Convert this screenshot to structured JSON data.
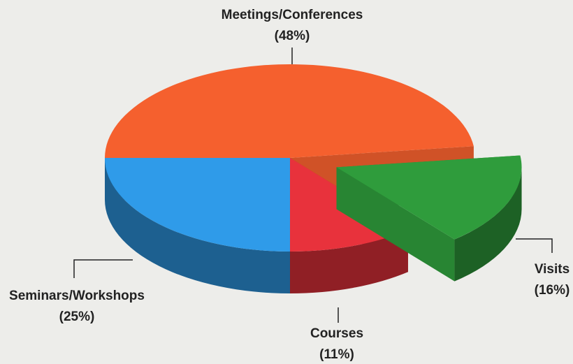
{
  "chart_data": {
    "type": "pie3d",
    "categories": [
      "Meetings/Conferences",
      "Visits",
      "Courses",
      "Seminars/Workshops"
    ],
    "values": [
      48,
      16,
      11,
      25
    ],
    "value_labels": [
      "(48%)",
      "(16%)",
      "(11%)",
      "(25%)"
    ],
    "colors": [
      "#f5602e",
      "#2f9c3c",
      "#e8323c",
      "#2f9be9"
    ],
    "explode": [
      false,
      true,
      false,
      false
    ]
  }
}
